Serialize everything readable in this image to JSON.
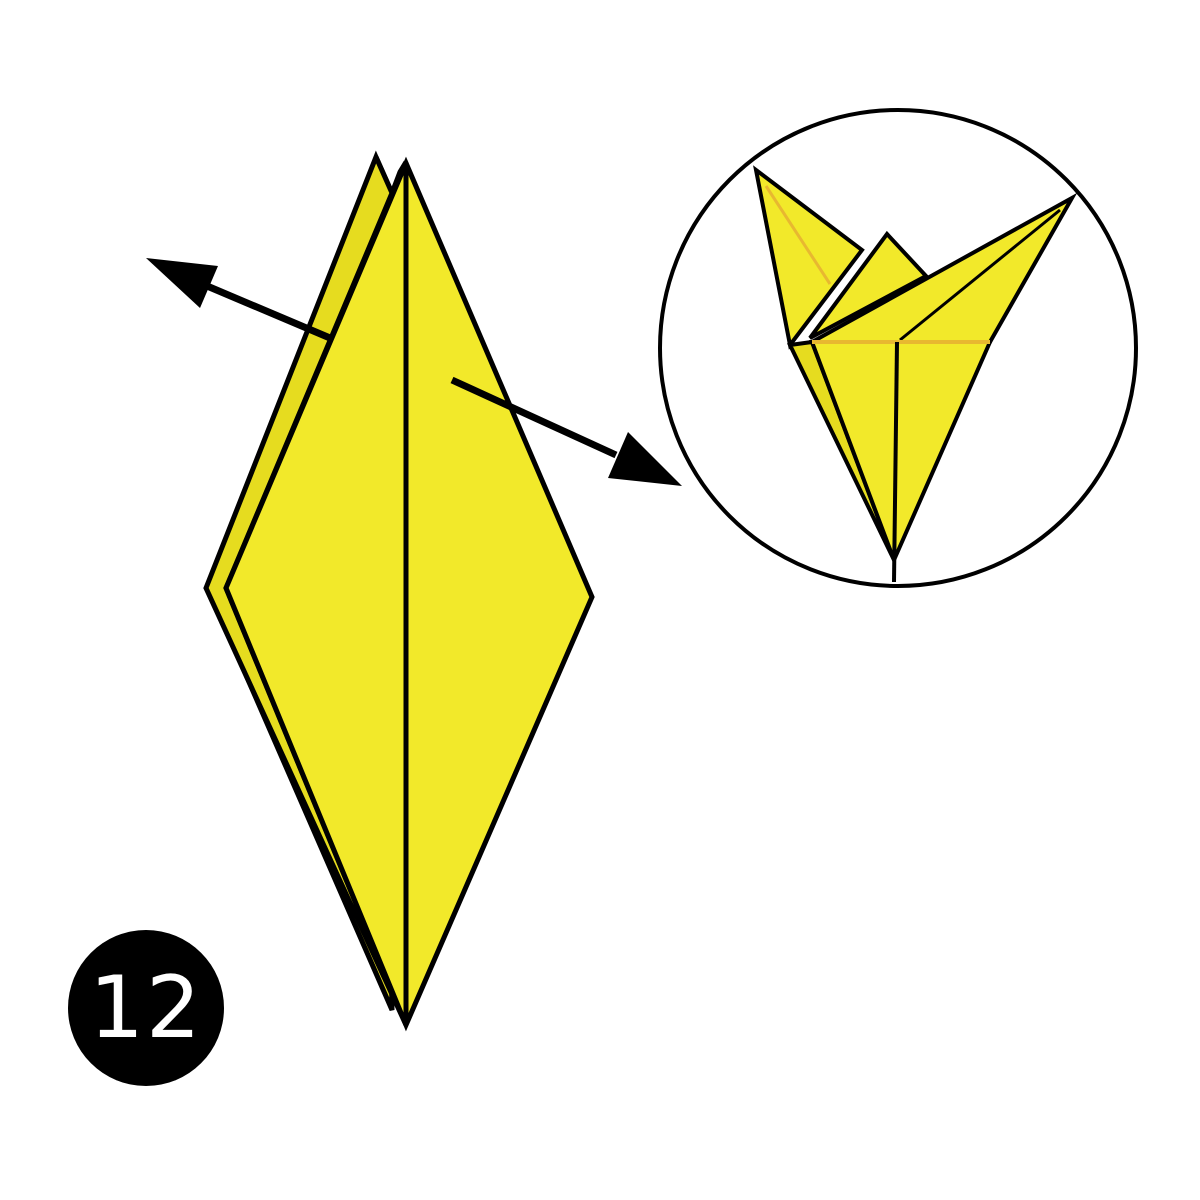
{
  "step": {
    "number": "12"
  },
  "colors": {
    "paper": "#f2e92a",
    "paper_back": "#e6dc1f",
    "outline": "#000000",
    "crease_highlight": "#e8b830",
    "badge_bg": "#000000",
    "badge_text": "#ffffff",
    "background": "#ffffff"
  },
  "icons": {
    "left_arrow": "arrow-pull-left-icon",
    "right_arrow": "arrow-pull-right-icon"
  }
}
